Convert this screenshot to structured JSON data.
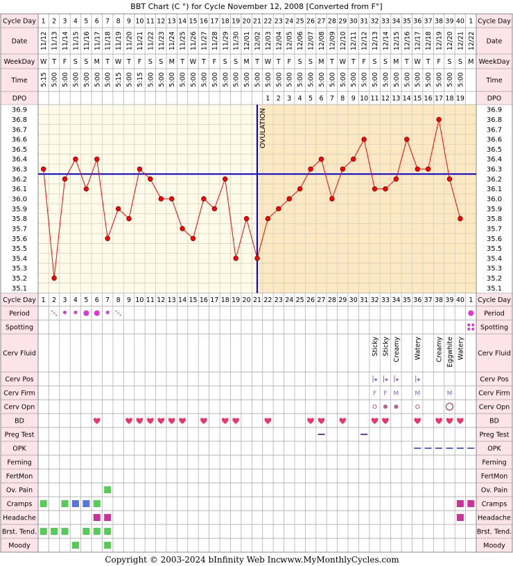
{
  "title": "BBT Chart (C °) for Cycle November 12, 2008  [Converted from F°]",
  "footer": {
    "copyright": "Copyright © 2003-2024 bInfinity Web Inc.",
    "site": "www.MyMonthlyCycles.com"
  },
  "row_labels": {
    "cycle_day": "Cycle Day",
    "date": "Date",
    "weekday": "WeekDay",
    "time": "Time",
    "dpo": "DPO",
    "period": "Period",
    "spotting": "Spotting",
    "cerv_fluid": "Cerv Fluid",
    "cerv_pos": "Cerv Pos",
    "cerv_firm": "Cerv Firm",
    "cerv_opn": "Cerv Opn",
    "bd": "BD",
    "preg_test": "Preg Test",
    "opk": "OPK",
    "ferning": "Ferning",
    "fertmon": "FertMon",
    "ov_pain": "Ov. Pain",
    "cramps": "Cramps",
    "headache": "Headache",
    "brst_tend": "Brst. Tend.",
    "moody": "Moody"
  },
  "columns": {
    "cycle_days": [
      "1",
      "2",
      "3",
      "4",
      "5",
      "6",
      "7",
      "8",
      "9",
      "10",
      "11",
      "12",
      "13",
      "14",
      "15",
      "16",
      "17",
      "18",
      "19",
      "20",
      "21",
      "22",
      "23",
      "24",
      "25",
      "26",
      "27",
      "28",
      "29",
      "30",
      "31",
      "32",
      "33",
      "34",
      "35",
      "36",
      "37",
      "38",
      "39",
      "40",
      "1"
    ],
    "dates": [
      "11/12",
      "11/13",
      "11/14",
      "11/15",
      "11/16",
      "11/17",
      "11/18",
      "11/19",
      "11/20",
      "11/21",
      "11/22",
      "11/23",
      "11/24",
      "11/25",
      "11/26",
      "11/27",
      "11/28",
      "11/29",
      "11/30",
      "12/01",
      "12/02",
      "12/03",
      "12/04",
      "12/05",
      "12/06",
      "12/07",
      "12/08",
      "12/09",
      "12/10",
      "12/11",
      "12/12",
      "12/13",
      "12/14",
      "12/15",
      "12/16",
      "12/17",
      "12/18",
      "12/19",
      "12/20",
      "12/21",
      "12/22"
    ],
    "weekdays": [
      "W",
      "T",
      "F",
      "S",
      "S",
      "M",
      "T",
      "W",
      "T",
      "F",
      "S",
      "S",
      "M",
      "T",
      "W",
      "T",
      "F",
      "S",
      "S",
      "M",
      "T",
      "W",
      "T",
      "F",
      "S",
      "S",
      "M",
      "T",
      "W",
      "T",
      "F",
      "S",
      "S",
      "M",
      "T",
      "W",
      "T",
      "F",
      "S",
      "S",
      "M"
    ],
    "times": [
      "5:15",
      "5:00",
      "5:00",
      "5:00",
      "5:00",
      "5:00",
      "5:00",
      "5:15",
      "5:00",
      "5:15",
      "5:00",
      "5:00",
      "5:00",
      "5:00",
      "5:00",
      "5:00",
      "5:00",
      "5:00",
      "5:00",
      "5:00",
      "5:00",
      "5:00",
      "5:00",
      "5:00",
      "5:00",
      "5:00",
      "5:00",
      "5:00",
      "5:00",
      "5:00",
      "5:00",
      "5:00",
      "5:00",
      "5:00",
      "5:00",
      "5:00",
      "5:00",
      "5:00",
      "5:00",
      "5:00",
      ""
    ],
    "dpo": [
      "",
      "",
      "",
      "",
      "",
      "",
      "",
      "",
      "",
      "",
      "",
      "",
      "",
      "",
      "",
      "",
      "",
      "",
      "",
      "",
      "",
      "1",
      "2",
      "3",
      "4",
      "5",
      "6",
      "7",
      "8",
      "9",
      "10",
      "11",
      "12",
      "13",
      "14",
      "15",
      "16",
      "17",
      "18",
      "19",
      ""
    ]
  },
  "chart_data": {
    "type": "line",
    "title": "BBT Chart (C °) for Cycle November 12, 2008  [Converted from F°]",
    "x": [
      1,
      2,
      3,
      4,
      5,
      6,
      7,
      8,
      9,
      10,
      11,
      12,
      13,
      14,
      15,
      16,
      17,
      18,
      19,
      20,
      21,
      22,
      23,
      24,
      25,
      26,
      27,
      28,
      29,
      30,
      31,
      32,
      33,
      34,
      35,
      36,
      37,
      38,
      39,
      40
    ],
    "series": [
      {
        "values": [
          36.3,
          35.2,
          36.2,
          36.4,
          36.1,
          36.4,
          35.6,
          35.9,
          35.8,
          36.3,
          36.2,
          36.0,
          36.0,
          35.7,
          35.6,
          36.0,
          35.9,
          36.2,
          35.4,
          35.8,
          35.4,
          35.8,
          35.9,
          36.0,
          36.1,
          36.3,
          36.4,
          36.0,
          36.3,
          36.4,
          36.6,
          36.1,
          36.1,
          36.2,
          36.6,
          36.3,
          36.3,
          36.8,
          36.2,
          35.8
        ],
        "color": "#ff0000"
      }
    ],
    "ylim": [
      35.05,
      36.95
    ],
    "yticks": [
      "36.9",
      "36.8",
      "36.7",
      "36.6",
      "36.5",
      "36.4",
      "36.3",
      "36.2",
      "36.1",
      "36.0",
      "35.9",
      "35.8",
      "35.7",
      "35.6",
      "35.5",
      "35.4",
      "35.3",
      "35.2",
      "35.1"
    ],
    "coverline": 36.25,
    "ovulation_day": 21,
    "ovulation_label": "OVULATION",
    "grid": true,
    "colors": {
      "pre_ovulation_bg": "#fffbea",
      "post_ovulation_bg": "#fde8c4",
      "line": "#ff0000",
      "point": "#ff0000",
      "coverline": "#0000cc",
      "header_bg": "#fde4ea",
      "border": "#000000"
    }
  },
  "observations": {
    "period": [
      {
        "day": 2,
        "type": "dots-light"
      },
      {
        "day": 3,
        "type": "dot-small"
      },
      {
        "day": 4,
        "type": "dot-small"
      },
      {
        "day": 5,
        "type": "dot-large"
      },
      {
        "day": 6,
        "type": "dot-large"
      },
      {
        "day": 7,
        "type": "dot-small"
      },
      {
        "day": 8,
        "type": "dots-light"
      },
      {
        "day": 41,
        "type": "dot-large"
      }
    ],
    "spotting": [
      41
    ],
    "cerv_fluid": [
      {
        "day": 32,
        "label": "Sticky"
      },
      {
        "day": 33,
        "label": "Sticky"
      },
      {
        "day": 34,
        "label": "Creamy"
      },
      {
        "day": 36,
        "label": "Watery"
      },
      {
        "day": 38,
        "label": "Creamy"
      },
      {
        "day": 39,
        "label": "Eggwhite"
      },
      {
        "day": 40,
        "label": "Watery"
      }
    ],
    "cerv_pos": [
      32,
      33,
      34,
      36
    ],
    "cerv_firm": [
      {
        "day": 32,
        "label": "F"
      },
      {
        "day": 33,
        "label": "F"
      },
      {
        "day": 34,
        "label": "M"
      },
      {
        "day": 36,
        "label": "M"
      },
      {
        "day": 39,
        "label": "M"
      }
    ],
    "cerv_opn": [
      {
        "day": 32,
        "type": "open-small"
      },
      {
        "day": 33,
        "type": "closed"
      },
      {
        "day": 34,
        "type": "closed"
      },
      {
        "day": 36,
        "type": "open-small"
      },
      {
        "day": 39,
        "type": "open-large"
      }
    ],
    "bd": [
      6,
      9,
      10,
      11,
      12,
      13,
      14,
      16,
      18,
      19,
      22,
      26,
      27,
      29,
      32,
      33,
      36,
      38,
      39,
      40
    ],
    "preg_test": [
      27,
      31
    ],
    "opk": [
      36,
      37,
      38,
      39,
      40,
      41
    ],
    "ov_pain": [
      7
    ],
    "cramps": [
      {
        "day": 1,
        "color": "#55cc55"
      },
      {
        "day": 3,
        "color": "#55cc55"
      },
      {
        "day": 4,
        "color": "#5577dd"
      },
      {
        "day": 5,
        "color": "#5577dd"
      },
      {
        "day": 6,
        "color": "#55cc55"
      },
      {
        "day": 40,
        "color": "#cc3399"
      },
      {
        "day": 41,
        "color": "#cc3399"
      }
    ],
    "headache": [
      {
        "day": 6,
        "color": "#cc3399"
      },
      {
        "day": 7,
        "color": "#cc3399"
      },
      {
        "day": 40,
        "color": "#cc3399"
      }
    ],
    "brst_tend": [
      {
        "day": 1,
        "color": "#55cc55"
      },
      {
        "day": 2,
        "color": "#55cc55"
      },
      {
        "day": 3,
        "color": "#55cc55"
      },
      {
        "day": 5,
        "color": "#55cc55"
      },
      {
        "day": 6,
        "color": "#55cc55"
      },
      {
        "day": 7,
        "color": "#55cc55"
      }
    ],
    "moody": [
      {
        "day": 4,
        "color": "#55cc55"
      },
      {
        "day": 7,
        "color": "#55cc55"
      }
    ]
  }
}
